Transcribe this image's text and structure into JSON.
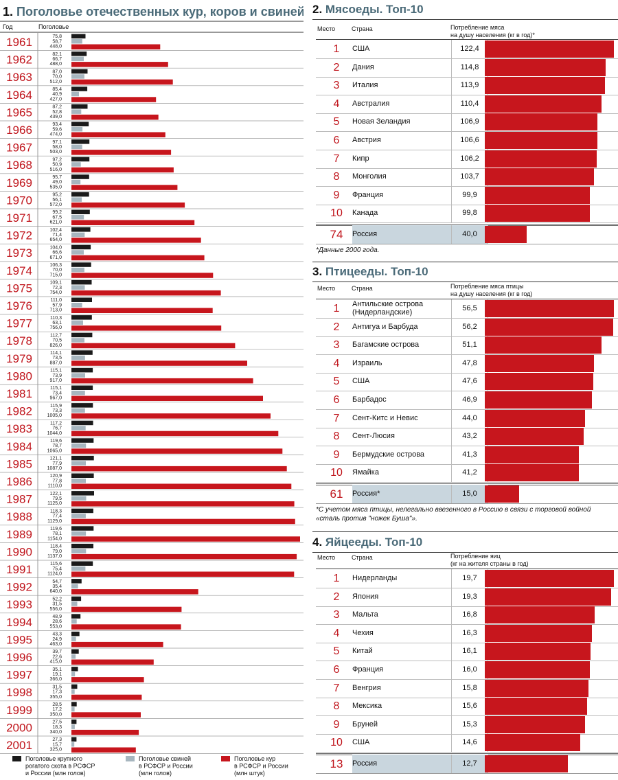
{
  "livestock": {
    "title_number": "1.",
    "title": "Поголовье отечественных кур, коров и свиней",
    "col_year": "Год",
    "col_stock": "Поголовье",
    "legend": [
      {
        "label": [
          "Поголовье крупного",
          "рогатого скота в РСФСР",
          "и России (млн голов)"
        ],
        "color": "#1a1a1a"
      },
      {
        "label": [
          "Поголовье свиней",
          "в РСФСР и России",
          "(млн голов)"
        ],
        "color": "#a7b6bf"
      },
      {
        "label": [
          "Поголовье кур",
          "в РСФСР и России",
          "(млн штук)"
        ],
        "color": "#c7161d"
      }
    ],
    "chart_data": {
      "type": "bar",
      "title": "Поголовье отечественных кур, коров и свиней",
      "xlabel": "Год",
      "ylabel": "Поголовье",
      "categories": [
        "1961",
        "1962",
        "1963",
        "1964",
        "1965",
        "1966",
        "1967",
        "1968",
        "1969",
        "1970",
        "1971",
        "1972",
        "1973",
        "1974",
        "1975",
        "1976",
        "1977",
        "1978",
        "1979",
        "1980",
        "1981",
        "1982",
        "1983",
        "1984",
        "1985",
        "1986",
        "1987",
        "1988",
        "1989",
        "1990",
        "1991",
        "1992",
        "1993",
        "1994",
        "1995",
        "1996",
        "1997",
        "1998",
        "1999",
        "2000",
        "2001"
      ],
      "series": [
        {
          "name": "Поголовье крупного рогатого скота в РСФСР и России (млн голов)",
          "labels": [
            "75,8",
            "82,1",
            "87,0",
            "85,4",
            "87,2",
            "93,4",
            "97,1",
            "97,2",
            "95,7",
            "95,2",
            "99,2",
            "102,4",
            "104,0",
            "106,3",
            "109,1",
            "111,0",
            "110,3",
            "112,7",
            "114,1",
            "115,1",
            "115,1",
            "115,9",
            "117,2",
            "119,6",
            "121,1",
            "120,9",
            "122,1",
            "118,3",
            "119,6",
            "118,4",
            "115,6",
            "54,7",
            "52,2",
            "48,9",
            "43,3",
            "39,7",
            "35,1",
            "31,5",
            "28,5",
            "27,5",
            "27,3"
          ],
          "values": [
            75.8,
            82.1,
            87.0,
            85.4,
            87.2,
            93.4,
            97.1,
            97.2,
            95.7,
            95.2,
            99.2,
            102.4,
            104.0,
            106.3,
            109.1,
            111.0,
            110.3,
            112.7,
            114.1,
            115.1,
            115.1,
            115.9,
            117.2,
            119.6,
            121.1,
            120.9,
            122.1,
            118.3,
            119.6,
            118.4,
            115.6,
            54.7,
            52.2,
            48.9,
            43.3,
            39.7,
            35.1,
            31.5,
            28.5,
            27.5,
            27.3
          ]
        },
        {
          "name": "Поголовье свиней в РСФСР и России (млн голов)",
          "labels": [
            "58,7",
            "66,7",
            "70,0",
            "40,9",
            "52,8",
            "59,6",
            "58,0",
            "50,9",
            "49,0",
            "56,1",
            "67,5",
            "71,4",
            "66,6",
            "70,0",
            "72,3",
            "57,9",
            "63,1",
            "70,5",
            "73,5",
            "73,9",
            "73,4",
            "73,3",
            "76,7",
            "78,7",
            "77,9",
            "77,8",
            "79,5",
            "77,4",
            "78,1",
            "79,0",
            "75,4",
            "35,4",
            "31,5",
            "28,6",
            "24,9",
            "22,6",
            "19,1",
            "17,3",
            "17,2",
            "18,3",
            "15,7"
          ],
          "values": [
            58.7,
            66.7,
            70.0,
            40.9,
            52.8,
            59.6,
            58.0,
            50.9,
            49.0,
            56.1,
            67.5,
            71.4,
            66.6,
            70.0,
            72.3,
            57.9,
            63.1,
            70.5,
            73.5,
            73.9,
            73.4,
            73.3,
            76.7,
            78.7,
            77.9,
            77.8,
            79.5,
            77.4,
            78.1,
            79.0,
            75.4,
            35.4,
            31.5,
            28.6,
            24.9,
            22.6,
            19.1,
            17.3,
            17.2,
            18.3,
            15.7
          ]
        },
        {
          "name": "Поголовье кур в РСФСР и России (млн штук)",
          "labels": [
            "448,0",
            "488,0",
            "512,0",
            "427,0",
            "439,0",
            "474,0",
            "503,0",
            "516,0",
            "535,0",
            "572,0",
            "621,0",
            "654,0",
            "671,0",
            "715,0",
            "754,0",
            "713,0",
            "756,0",
            "826,0",
            "887,0",
            "917,0",
            "967,0",
            "1005,0",
            "1044,0",
            "1065,0",
            "1087,0",
            "1110,0",
            "1125,0",
            "1129,0",
            "1154,0",
            "1137,0",
            "1124,0",
            "640,0",
            "556,0",
            "553,0",
            "463,0",
            "415,0",
            "366,0",
            "355,0",
            "350,0",
            "340,0",
            "325,0"
          ],
          "values": [
            448,
            488,
            512,
            427,
            439,
            474,
            503,
            516,
            535,
            572,
            621,
            654,
            671,
            715,
            754,
            713,
            756,
            826,
            887,
            917,
            967,
            1005,
            1044,
            1065,
            1087,
            1110,
            1125,
            1129,
            1154,
            1137,
            1124,
            640,
            556,
            553,
            463,
            415,
            366,
            355,
            350,
            340,
            325
          ]
        }
      ]
    }
  },
  "meat": {
    "number": "2.",
    "title": "Мясоеды. Топ-10",
    "col_rank": "Место",
    "col_country": "Страна",
    "col_value": [
      "Потребление мяса",
      "на душу населения (кг в год)*"
    ],
    "footnote": "*Данные 2000 года.",
    "chart_data": {
      "type": "bar",
      "title": "Мясоеды. Топ-10",
      "ylabel": "Потребление мяса на душу населения (кг в год)",
      "categories": [
        "США",
        "Дания",
        "Италия",
        "Австралия",
        "Новая Зеландия",
        "Австрия",
        "Кипр",
        "Монголия",
        "Франция",
        "Канада",
        "Россия"
      ],
      "ranks": [
        "1",
        "2",
        "3",
        "4",
        "5",
        "6",
        "7",
        "8",
        "9",
        "10",
        "74"
      ],
      "labels": [
        "122,4",
        "114,8",
        "113,9",
        "110,4",
        "106,9",
        "106,6",
        "106,2",
        "103,7",
        "99,9",
        "99,8",
        "40,0"
      ],
      "values": [
        122.4,
        114.8,
        113.9,
        110.4,
        106.9,
        106.6,
        106.2,
        103.7,
        99.9,
        99.8,
        40.0
      ]
    }
  },
  "poultry": {
    "number": "3.",
    "title": "Птицееды. Топ-10",
    "col_rank": "Место",
    "col_country": "Страна",
    "col_value": [
      "Потребление мяса птицы",
      "на душу населения (кг в год)"
    ],
    "footnote": [
      "*С учетом мяса птицы, нелегально ввезенного в Россию в связи с торговой войной",
      "«сталь против \"ножек Буша\"»."
    ],
    "chart_data": {
      "type": "bar",
      "title": "Птицееды. Топ-10",
      "ylabel": "Потребление мяса птицы на душу населения (кг в год)",
      "categories": [
        "Антильские острова (Нидерландские)",
        "Антигуа и Барбуда",
        "Багамские острова",
        "Израиль",
        "США",
        "Барбадос",
        "Сент-Китс и Невис",
        "Сент-Люсия",
        "Бермудские острова",
        "Ямайка",
        "Россия*"
      ],
      "ranks": [
        "1",
        "2",
        "3",
        "4",
        "5",
        "6",
        "7",
        "8",
        "9",
        "10",
        "61"
      ],
      "labels": [
        "56,5",
        "56,2",
        "51,1",
        "47,8",
        "47,6",
        "46,9",
        "44,0",
        "43,2",
        "41,3",
        "41,2",
        "15,0"
      ],
      "values": [
        56.5,
        56.2,
        51.1,
        47.8,
        47.6,
        46.9,
        44.0,
        43.2,
        41.3,
        41.2,
        15.0
      ]
    }
  },
  "eggs": {
    "number": "4.",
    "title": "Яйцееды. Топ-10",
    "col_rank": "Место",
    "col_country": "Страна",
    "col_value": [
      "Потребление яиц",
      "(кг на жителя страны в год)"
    ],
    "chart_data": {
      "type": "bar",
      "title": "Яйцееды. Топ-10",
      "ylabel": "Потребление яиц (кг на жителя страны в год)",
      "categories": [
        "Нидерланды",
        "Япония",
        "Мальта",
        "Чехия",
        "Китай",
        "Франция",
        "Венгрия",
        "Мексика",
        "Бруней",
        "США",
        "Россия"
      ],
      "ranks": [
        "1",
        "2",
        "3",
        "4",
        "5",
        "6",
        "7",
        "8",
        "9",
        "10",
        "13"
      ],
      "labels": [
        "19,7",
        "19,3",
        "16,8",
        "16,3",
        "16,1",
        "16,0",
        "15,8",
        "15,6",
        "15,3",
        "14,6",
        "12,7"
      ],
      "values": [
        19.7,
        19.3,
        16.8,
        16.3,
        16.1,
        16.0,
        15.8,
        15.6,
        15.3,
        14.6,
        12.7
      ]
    }
  }
}
